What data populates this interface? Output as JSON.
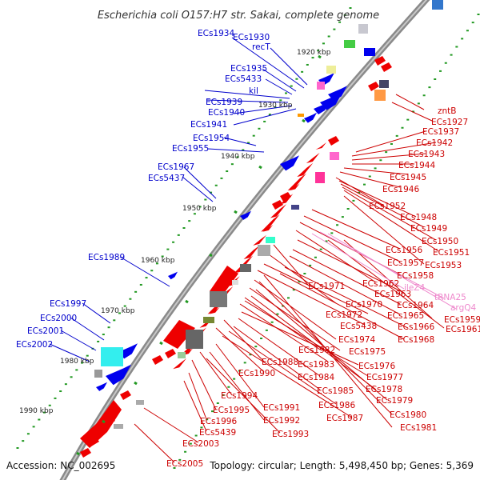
{
  "title": "Escherichia coli O157:H7 str. Sakai, complete genome",
  "footer": {
    "accession": "Accession: NC_002695",
    "summary": "Topology: circular; Length: 5,498,450 bp; Genes: 5,369"
  },
  "colors": {
    "backbone": "#8c8c8c",
    "left_labels": "#0000cc",
    "right_labels": "#cc0000",
    "rna_labels": "#ee88cc",
    "ticks": "#229922",
    "plus_strand_genes": "#0000ee",
    "minus_strand_genes": "#ee0000",
    "rna_genes": "#ff66cc"
  },
  "scale_labels": [
    "1920 kbp",
    "1930 kbp",
    "1940 kbp",
    "1950 kbp",
    "1960 kbp",
    "1970 kbp",
    "1980 kbp",
    "1990 kbp"
  ],
  "left_labels": [
    "ECs1934",
    "ECs1930",
    "recT",
    "ECs1935",
    "ECs5433",
    "kil",
    "ECs1939",
    "ECs1940",
    "ECs1941",
    "ECs1954",
    "ECs1955",
    "ECs1967",
    "ECs5437",
    "ECs1989",
    "ECs1997",
    "ECs2000",
    "ECs2001",
    "ECs2002"
  ],
  "right_labels": [
    "zntB",
    "ECs1927",
    "ECs1937",
    "ECs1942",
    "ECs1943",
    "ECs1944",
    "ECs1945",
    "ECs1946",
    "ECs1952",
    "ECs1948",
    "ECs1949",
    "ECs1950",
    "ECs1951",
    "ECs1956",
    "ECs1957",
    "ECs1953",
    "ECs1958",
    "ECs1962",
    "ECs1971",
    "ECs1963",
    "ECs1970",
    "ECs1964",
    "ECs1972",
    "ECs1965",
    "ECs5438",
    "ECs1966",
    "ECs1961",
    "ECs1959",
    "ECs1968",
    "ECs1974",
    "ECs1975",
    "ECs1982",
    "ECs1983",
    "ECs1976",
    "ECs1988",
    "ECs1984",
    "ECs1977",
    "ECs1990",
    "ECs1985",
    "ECs1978",
    "ECs1994",
    "ECs1986",
    "ECs1979",
    "ECs1991",
    "ECs1995",
    "ECs1987",
    "ECs1980",
    "ECs1992",
    "ECs1996",
    "ECs1981",
    "ECs1993",
    "ECs5439",
    "ECs2003",
    "ECs2005"
  ],
  "rna_labels": [
    "ileZ4",
    "tRNA25",
    "argQ4"
  ]
}
